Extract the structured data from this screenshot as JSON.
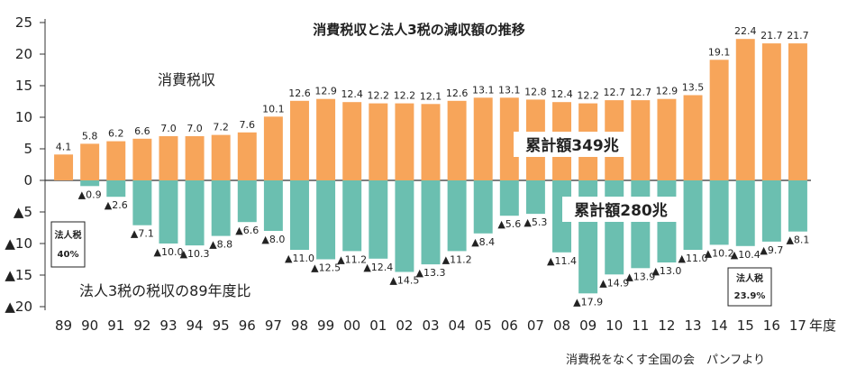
{
  "chart_data": {
    "type": "bar",
    "title": "消費税収と法人3税の減収額の推移",
    "xlabel": "年度",
    "ylim": [
      -20,
      25
    ],
    "yticks": [
      {
        "value": 25,
        "label": "25"
      },
      {
        "value": 20,
        "label": "20"
      },
      {
        "value": 15,
        "label": "15"
      },
      {
        "value": 10,
        "label": "10"
      },
      {
        "value": 5,
        "label": "5"
      },
      {
        "value": 0,
        "label": "0"
      },
      {
        "value": -5,
        "label": "▲5"
      },
      {
        "value": -10,
        "label": "▲10"
      },
      {
        "value": -15,
        "label": "▲15"
      },
      {
        "value": -20,
        "label": "▲20"
      }
    ],
    "categories": [
      "89",
      "90",
      "91",
      "92",
      "93",
      "94",
      "95",
      "96",
      "97",
      "98",
      "99",
      "00",
      "01",
      "02",
      "03",
      "04",
      "05",
      "06",
      "07",
      "08",
      "09",
      "10",
      "11",
      "12",
      "13",
      "14",
      "15",
      "16",
      "17"
    ],
    "series": [
      {
        "name": "消費税収",
        "color": "#f7a55a",
        "values": [
          4.1,
          5.8,
          6.2,
          6.6,
          7.0,
          7.0,
          7.2,
          7.6,
          10.1,
          12.6,
          12.9,
          12.4,
          12.2,
          12.2,
          12.1,
          12.6,
          13.1,
          13.1,
          12.8,
          12.4,
          12.2,
          12.7,
          12.7,
          12.9,
          13.5,
          19.1,
          22.4,
          21.7,
          21.7
        ],
        "labels": [
          "4.1",
          "5.8",
          "6.2",
          "6.6",
          "7.0",
          "7.0",
          "7.2",
          "7.6",
          "10.1",
          "12.6",
          "12.9",
          "12.4",
          "12.2",
          "12.2",
          "12.1",
          "12.6",
          "13.1",
          "13.1",
          "12.8",
          "12.4",
          "12.2",
          "12.7",
          "12.7",
          "12.9",
          "13.5",
          "19.1",
          "22.4",
          "21.7",
          "21.7"
        ]
      },
      {
        "name": "法人3税の税収の89年度比",
        "color": "#6bbfb0",
        "values": [
          null,
          -0.9,
          -2.6,
          -7.1,
          -10.0,
          -10.3,
          -8.8,
          -6.6,
          -8.0,
          -11.0,
          -12.5,
          -11.2,
          -12.4,
          -14.5,
          -13.3,
          -11.2,
          -8.4,
          -5.6,
          -5.3,
          -11.4,
          -17.9,
          -14.9,
          -13.9,
          -13.0,
          -11.0,
          -10.2,
          -10.4,
          -9.7,
          -8.1
        ],
        "labels": [
          null,
          "▲0.9",
          "▲2.6",
          "▲7.1",
          "▲10.0",
          "▲10.3",
          "▲8.8",
          "▲6.6",
          "▲8.0",
          "▲11.0",
          "▲12.5",
          "▲11.2",
          "▲12.4",
          "▲14.5",
          "▲13.3",
          "▲11.2",
          "▲8.4",
          "▲5.6",
          "▲5.3",
          "▲11.4",
          "▲17.9",
          "▲14.9",
          "▲13.9",
          "▲13.0",
          "▲11.0",
          "▲10.2",
          "▲10.4",
          "▲9.7",
          "▲8.1"
        ]
      }
    ],
    "annotations": {
      "total_consumption": "累計額349兆",
      "total_corporate": "累計額280兆",
      "box_89": {
        "line1": "法人税",
        "line2": "40%"
      },
      "box_15": {
        "line1": "法人税",
        "line2": "23.9%"
      }
    },
    "source": "消費税をなくす全国の会　パンフより"
  }
}
